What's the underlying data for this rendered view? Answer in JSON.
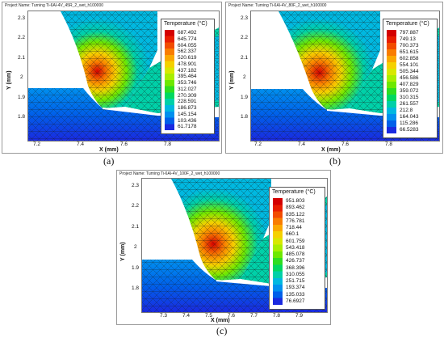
{
  "panels": [
    {
      "project": "Project Name:  Turning Ti-6Al-4V_45R_2_wet_h100000",
      "caption": "(a)",
      "legend_title": "Temperature (°C)",
      "legend_values": [
        "687.492",
        "645.774",
        "604.055",
        "562.337",
        "520.619",
        "478.901",
        "437.182",
        "395.464",
        "353.746",
        "312.027",
        "270.309",
        "228.591",
        "186.873",
        "145.154",
        "103.436",
        "61.7178"
      ],
      "x_ticks": [
        "7.2",
        "7.4",
        "7.6",
        "7.8"
      ],
      "y_ticks": [
        "2.3",
        "2.2",
        "2.1",
        "2",
        "1.9",
        "1.8"
      ],
      "xlabel": "X (mm)",
      "ylabel": "Y (mm)"
    },
    {
      "project": "Project Name:  Turning Ti-6Al-4V_80F_2_wet_h100000",
      "caption": "(b)",
      "legend_title": "Temperature (°C)",
      "legend_values": [
        "797.887",
        "749.13",
        "700.373",
        "651.615",
        "602.858",
        "554.101",
        "505.344",
        "456.586",
        "407.829",
        "359.072",
        "310.315",
        "261.557",
        "212.8",
        "164.043",
        "115.286",
        "66.5283"
      ],
      "x_ticks": [
        "7.2",
        "7.4",
        "7.6",
        "7.8"
      ],
      "y_ticks": [
        "2.3",
        "2.2",
        "2.1",
        "2",
        "1.9",
        "1.8"
      ],
      "xlabel": "X (mm)",
      "ylabel": "Y (mm)"
    },
    {
      "project": "Project Name:  Turning Ti-6Al-4V_100F_2_wet_h100000",
      "caption": "(c)",
      "legend_title": "Temperature (°C)",
      "legend_values": [
        "951.803",
        "893.462",
        "835.122",
        "776.781",
        "718.44",
        "660.1",
        "601.759",
        "543.418",
        "485.078",
        "426.737",
        "368.396",
        "310.055",
        "251.715",
        "193.374",
        "135.033",
        "76.6927"
      ],
      "x_ticks": [
        "7.3",
        "7.4",
        "7.5",
        "7.6",
        "7.7",
        "7.8",
        "7.9"
      ],
      "y_ticks": [
        "2.3",
        "2.2",
        "2.1",
        "2",
        "1.9",
        "1.8"
      ],
      "xlabel": "X (mm)",
      "ylabel": "Y (mm)"
    }
  ],
  "colors": {
    "scale": [
      "#d40000",
      "#e81e00",
      "#f24c00",
      "#f97d00",
      "#fba800",
      "#f5d100",
      "#d8e800",
      "#a8ee00",
      "#6ee800",
      "#2ede20",
      "#00d860",
      "#00d0a8",
      "#00b8e0",
      "#0090ee",
      "#0060ea",
      "#1a2ae0"
    ]
  }
}
